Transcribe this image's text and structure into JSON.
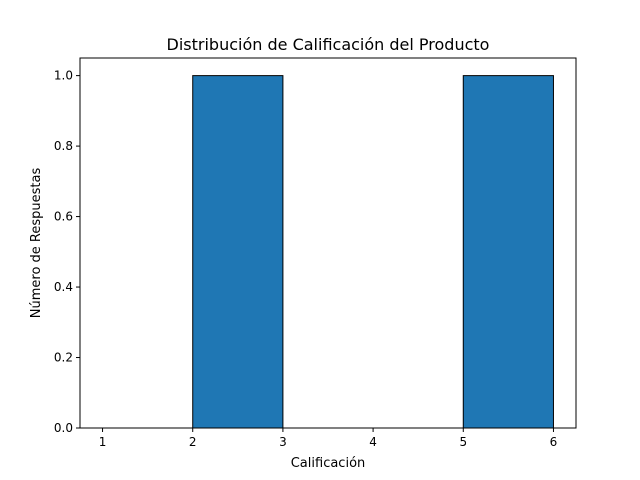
{
  "chart_data": {
    "type": "bar",
    "title": "Distribución de Calificación del Producto",
    "xlabel": "Calificación",
    "ylabel": "Número de Respuestas",
    "bins": [
      {
        "start": 2,
        "end": 3,
        "value": 1.0
      },
      {
        "start": 5,
        "end": 6,
        "value": 1.0
      }
    ],
    "xlim": [
      0.75,
      6.25
    ],
    "ylim": [
      0.0,
      1.05
    ],
    "xticks": [
      1,
      2,
      3,
      4,
      5,
      6
    ],
    "xtick_labels": [
      "1",
      "2",
      "3",
      "4",
      "5",
      "6"
    ],
    "yticks": [
      0.0,
      0.2,
      0.4,
      0.6,
      0.8,
      1.0
    ],
    "ytick_labels": [
      "0.0",
      "0.2",
      "0.4",
      "0.6",
      "0.8",
      "1.0"
    ],
    "bar_color": "#1f77b4",
    "edge_color": "#000000",
    "grid": false,
    "legend": "none"
  }
}
